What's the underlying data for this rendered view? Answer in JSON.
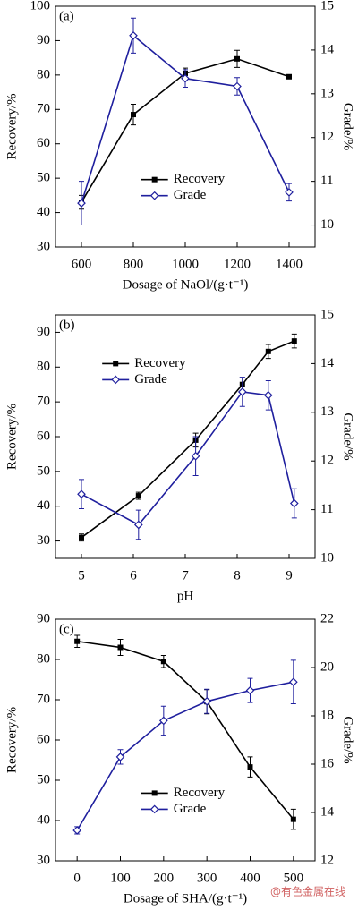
{
  "chart_data": [
    {
      "type": "line",
      "panel_label": "(a)",
      "xlabel": "Dosage of NaOl/(g·t⁻¹)",
      "ylabel": "Recovery/%",
      "y2label": "Grade/%",
      "x": [
        600,
        800,
        1000,
        1200,
        1400
      ],
      "xlim": [
        500,
        1500
      ],
      "xticks": [
        600,
        800,
        1000,
        1200,
        1400
      ],
      "ylim": [
        30,
        100
      ],
      "yticks": [
        30,
        40,
        50,
        60,
        70,
        80,
        90,
        100
      ],
      "y2lim": [
        9.5,
        15
      ],
      "y2ticks": [
        10,
        11,
        12,
        13,
        14,
        15
      ],
      "legend": "lower center",
      "series": [
        {
          "name": "Recovery",
          "color": "#000000",
          "marker": "square",
          "values": [
            43,
            68.5,
            80.5,
            84.7,
            79.5
          ],
          "errors": [
            2,
            3,
            1.5,
            2.5,
            0.5
          ]
        },
        {
          "name": "Grade",
          "color": "#1f1f9e",
          "marker": "diamond",
          "axis": "y2",
          "values": [
            10.5,
            14.33,
            13.35,
            13.17,
            10.75
          ],
          "errors": [
            0.5,
            0.4,
            0.2,
            0.2,
            0.2
          ]
        }
      ]
    },
    {
      "type": "line",
      "panel_label": "(b)",
      "xlabel": "pH",
      "ylabel": "Recovery/%",
      "y2label": "Grade/%",
      "x": [
        5,
        6.1,
        7.2,
        8.1,
        8.6,
        9.1
      ],
      "xlim": [
        4.5,
        9.5
      ],
      "xticks": [
        5,
        6,
        7,
        8,
        9
      ],
      "ylim": [
        25,
        95
      ],
      "yticks": [
        30,
        40,
        50,
        60,
        70,
        80,
        90
      ],
      "y2lim": [
        10,
        15
      ],
      "y2ticks": [
        10,
        11,
        12,
        13,
        14,
        15
      ],
      "legend": "upper left",
      "series": [
        {
          "name": "Recovery",
          "color": "#000000",
          "marker": "square",
          "values": [
            31,
            43,
            59,
            75,
            84.5,
            87.5
          ],
          "errors": [
            1,
            1,
            2,
            2,
            2,
            2
          ]
        },
        {
          "name": "Grade",
          "color": "#1f1f9e",
          "marker": "diamond",
          "axis": "y2",
          "values": [
            11.32,
            10.69,
            12.1,
            13.42,
            13.35,
            11.13
          ],
          "errors": [
            0.3,
            0.3,
            0.4,
            0.3,
            0.3,
            0.3
          ]
        }
      ]
    },
    {
      "type": "line",
      "panel_label": "(c)",
      "xlabel": "Dosage of SHA/(g·t⁻¹)",
      "ylabel": "Recovery/%",
      "y2label": "Grade/%",
      "x": [
        0,
        100,
        200,
        300,
        400,
        500
      ],
      "xlim": [
        -50,
        550
      ],
      "xticks": [
        0,
        100,
        200,
        300,
        400,
        500
      ],
      "ylim": [
        30,
        90
      ],
      "yticks": [
        30,
        40,
        50,
        60,
        70,
        80,
        90
      ],
      "y2lim": [
        12,
        22
      ],
      "y2ticks": [
        12,
        14,
        16,
        18,
        20,
        22
      ],
      "legend": "lower center",
      "series": [
        {
          "name": "Recovery",
          "color": "#000000",
          "marker": "square",
          "values": [
            84.5,
            83,
            79.5,
            69.5,
            53.3,
            40.3
          ],
          "errors": [
            1.5,
            2,
            1.5,
            3,
            2.5,
            2.5
          ]
        },
        {
          "name": "Grade",
          "color": "#1f1f9e",
          "marker": "diamond",
          "axis": "y2",
          "values": [
            13.26,
            16.3,
            17.8,
            18.6,
            19.05,
            19.4
          ],
          "errors": [
            0.15,
            0.3,
            0.6,
            0.5,
            0.5,
            0.9
          ]
        }
      ]
    }
  ],
  "watermark": "@有色金属在线"
}
